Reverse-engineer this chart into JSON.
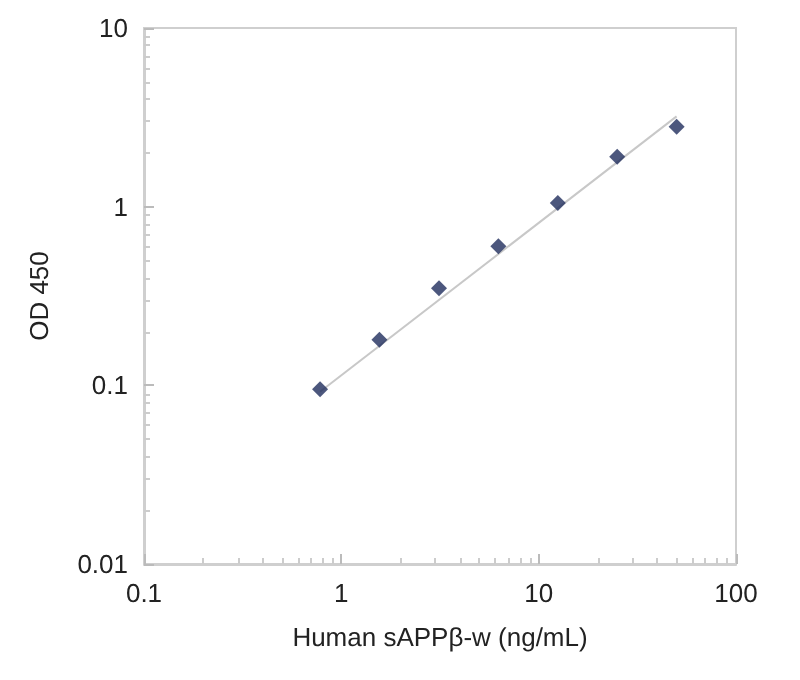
{
  "chart_data": {
    "type": "scatter",
    "xlabel": "Human sAPPβ-w (ng/mL)",
    "ylabel": "OD 450",
    "log": "xy",
    "grid": false,
    "marker": "diamond",
    "xlim": [
      0.1,
      100
    ],
    "xticks": [
      0.1,
      1,
      10,
      100
    ],
    "ylim": [
      0.01,
      10
    ],
    "yticks": [
      0.01,
      0.1,
      1,
      10
    ],
    "series": [
      {
        "color": "#1f2d5c",
        "x": [
          0.78,
          1.56,
          3.125,
          6.25,
          12.5,
          25,
          50
        ],
        "values": [
          0.095,
          0.18,
          0.35,
          0.6,
          1.05,
          1.9,
          2.8
        ]
      },
      {
        "type": "line",
        "marker": "none",
        "color": "#c8c8c8",
        "x": [
          0.78,
          50
        ],
        "values": [
          0.092,
          3.2
        ]
      }
    ]
  }
}
